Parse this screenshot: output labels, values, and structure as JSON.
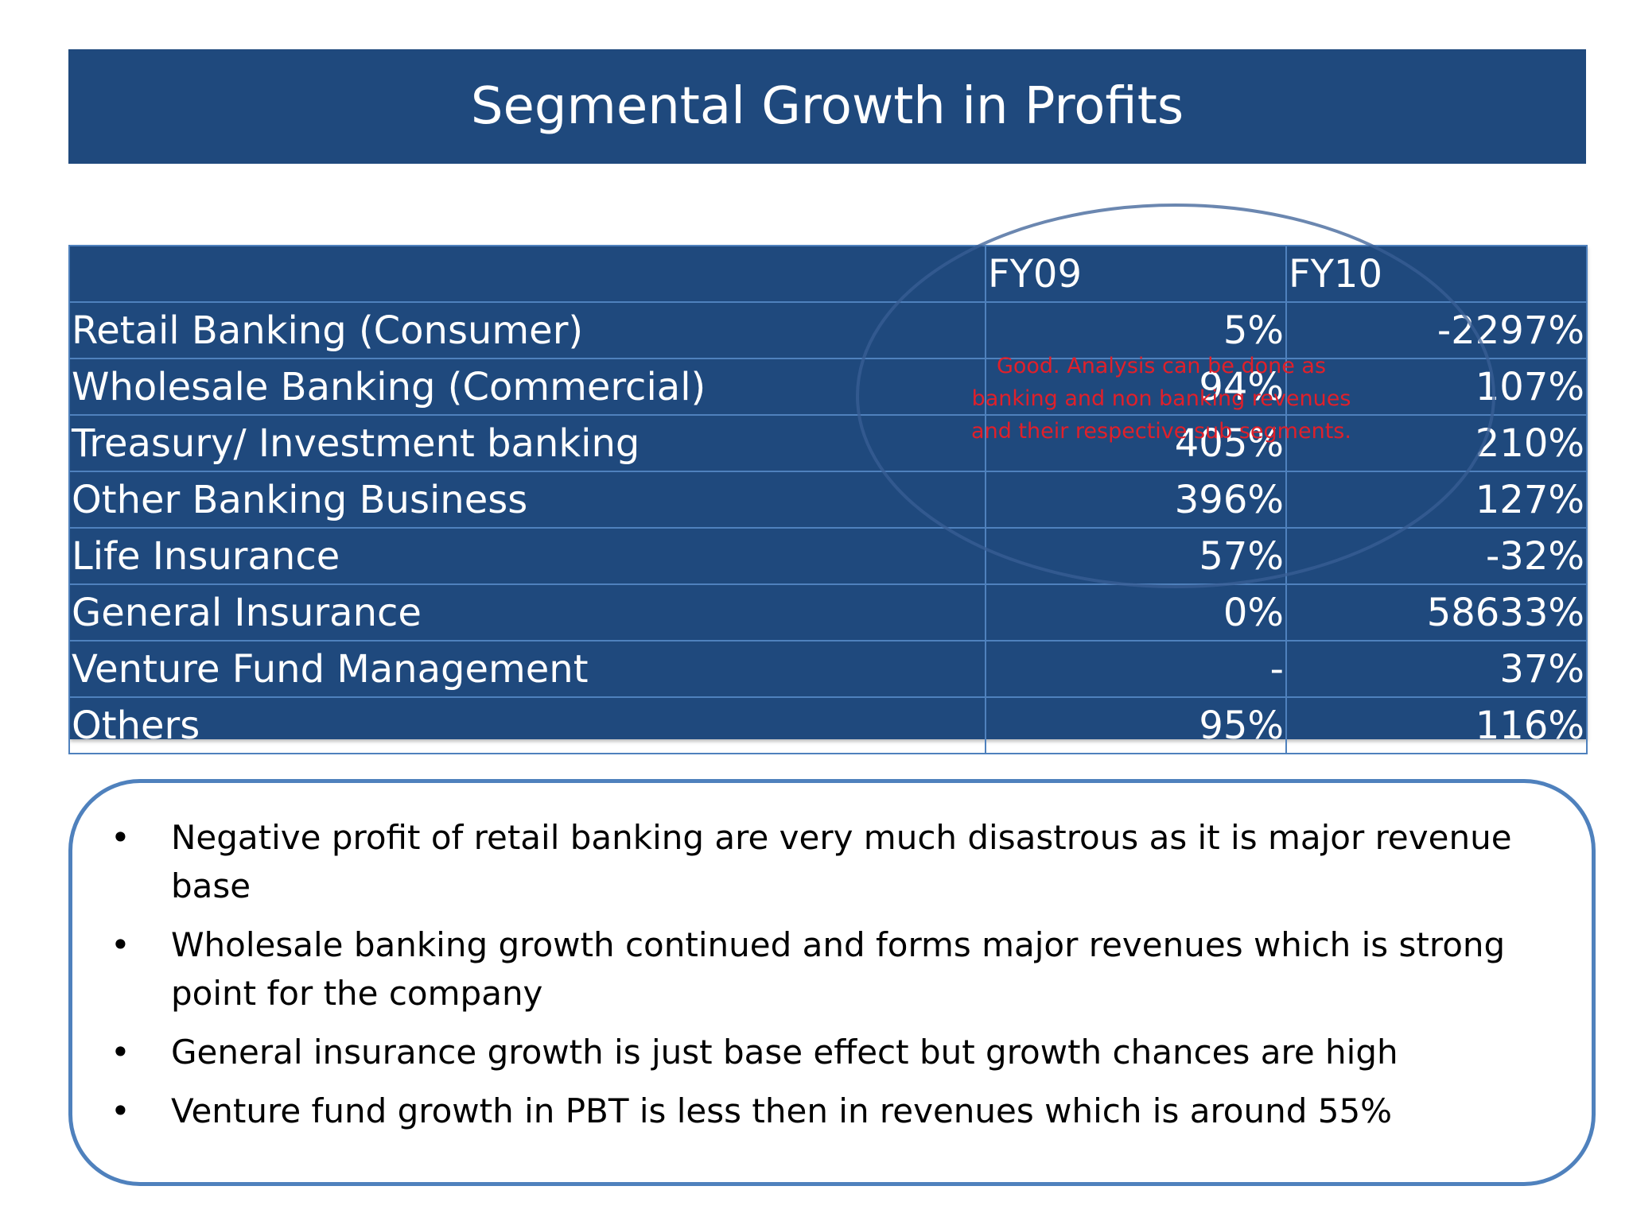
{
  "title": "Segmental Growth in Profits",
  "table": {
    "headers": [
      "",
      "FY09",
      "FY10"
    ],
    "rows": [
      {
        "segment": "Retail Banking (Consumer)",
        "fy09": "5%",
        "fy10": "-2297%"
      },
      {
        "segment": "Wholesale Banking (Commercial)",
        "fy09": "94%",
        "fy10": "107%"
      },
      {
        "segment": "Treasury/ Investment banking",
        "fy09": "405%",
        "fy10": "210%"
      },
      {
        "segment": "Other Banking Business",
        "fy09": "396%",
        "fy10": "127%"
      },
      {
        "segment": "Life Insurance",
        "fy09": "57%",
        "fy10": "-32%"
      },
      {
        "segment": "General Insurance",
        "fy09": "0%",
        "fy10": "58633%"
      },
      {
        "segment": "Venture Fund Management",
        "fy09": "-",
        "fy10": "37%"
      },
      {
        "segment": "Others",
        "fy09": "95%",
        "fy10": "116%"
      }
    ]
  },
  "comment": "Good. Analysis can be done as banking and non banking revenues and their respective sub segments.",
  "notes": {
    "bullet_symbol": "•",
    "items": [
      "Negative profit of retail banking are very much disastrous as it is major revenue base",
      "Wholesale banking growth continued and forms major revenues which is strong point for the company",
      "General insurance growth is just base effect but growth chances are high",
      "Venture fund growth in PBT is less then in revenues which is around 55%"
    ]
  },
  "colors": {
    "title_bg": "#1f497d",
    "table_bg": "#1f497d",
    "grid_line": "#4f81bd",
    "comment_text": "#e0202a",
    "box_border": "#4f81bd"
  }
}
